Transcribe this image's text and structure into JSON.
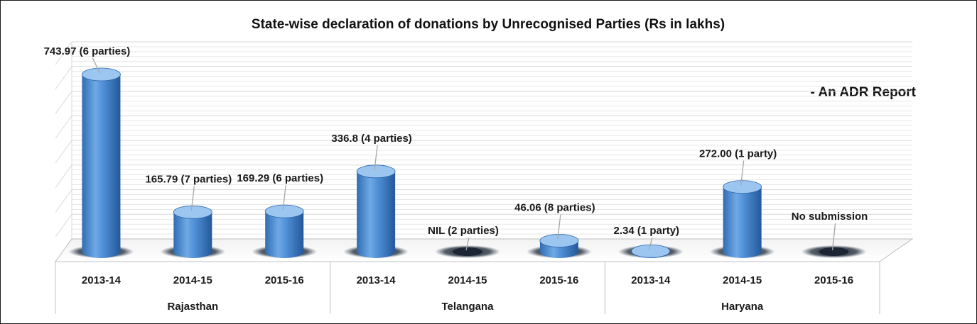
{
  "chart_data": {
    "type": "bar",
    "title": "State-wise declaration of donations by Unrecognised Parties (Rs in lakhs)",
    "annotation": "- An ADR Report",
    "ylim": [
      0,
      800
    ],
    "grid": true,
    "groups": [
      {
        "name": "Rajasthan",
        "items": [
          {
            "category": "2013-14",
            "value": 743.97,
            "label": "743.97 (6 parties)"
          },
          {
            "category": "2014-15",
            "value": 165.79,
            "label": "165.79 (7 parties)"
          },
          {
            "category": "2015-16",
            "value": 169.29,
            "label": "169.29 (6 parties)"
          }
        ]
      },
      {
        "name": "Telangana",
        "items": [
          {
            "category": "2013-14",
            "value": 336.8,
            "label": "336.8 (4 parties)"
          },
          {
            "category": "2014-15",
            "value": 0,
            "label": "NIL (2 parties)"
          },
          {
            "category": "2015-16",
            "value": 46.06,
            "label": "46.06 (8 parties)"
          }
        ]
      },
      {
        "name": "Haryana",
        "items": [
          {
            "category": "2013-14",
            "value": 2.34,
            "label": "2.34 (1 party)"
          },
          {
            "category": "2014-15",
            "value": 272.0,
            "label": "272.00 (1 party)"
          },
          {
            "category": "2015-16",
            "value": 0,
            "label": "No submission"
          }
        ]
      }
    ],
    "colors": {
      "bar": "#4f8fd6",
      "bar_dark": "#2b65a8",
      "bar_light": "#9cc6f0",
      "shadow": "#1f2b3a",
      "grid": "#d9d9d9",
      "axis": "#bfbfbf"
    }
  }
}
